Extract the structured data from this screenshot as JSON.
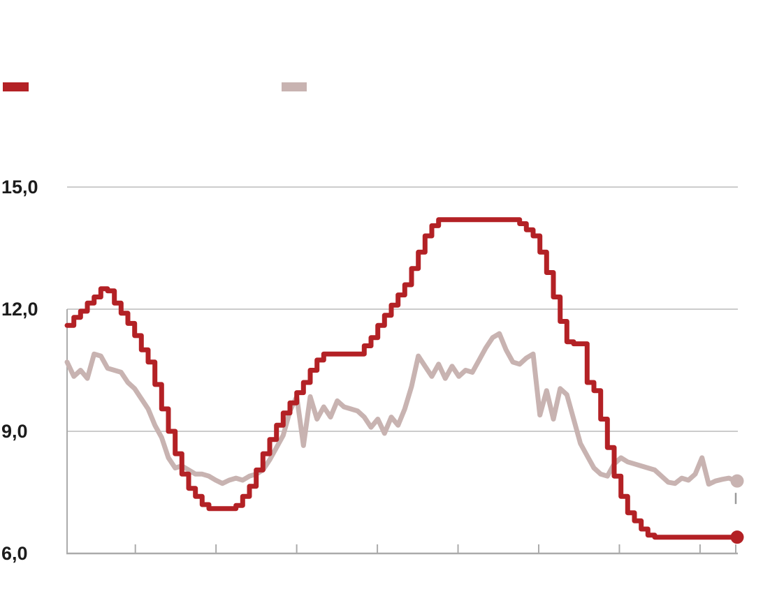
{
  "figure": {
    "background": "#ffffff",
    "title": "",
    "legend": {
      "items": [
        {
          "id": "red",
          "label": "",
          "color": "#b32125"
        },
        {
          "id": "pink",
          "label": "",
          "color": "#c8b3b1"
        }
      ]
    }
  },
  "chart_data": {
    "type": "line",
    "title": "",
    "xlabel": "",
    "ylabel": "",
    "grid": true,
    "legend_position": "top",
    "x_axis": {
      "tick_labels_visible": false,
      "tick_count": 9,
      "note_points_per_tick": 12
    },
    "y_axis": {
      "min": 6.0,
      "max": 15.5,
      "ticks": [
        {
          "label": "15,0",
          "value": 15
        },
        {
          "label": "12,0",
          "value": 12
        },
        {
          "label": "9,0",
          "value": 9
        },
        {
          "label": "6,0",
          "value": 6
        }
      ]
    },
    "colors": {
      "grid": "#cccccc",
      "axis": "#ababab",
      "tick": "#ababab",
      "label": "#1c1c1c",
      "end_dash": "#9a9a9a"
    },
    "series": [
      {
        "name": "series-red",
        "label": "",
        "color": "#b32125",
        "style": "step",
        "line_width": 7,
        "end_marker": true,
        "values": [
          11.6,
          11.8,
          11.95,
          12.15,
          12.3,
          12.5,
          12.45,
          12.15,
          11.9,
          11.65,
          11.35,
          11.0,
          10.7,
          10.15,
          9.55,
          9.0,
          8.45,
          7.95,
          7.6,
          7.4,
          7.2,
          7.1,
          7.1,
          7.1,
          7.1,
          7.18,
          7.4,
          7.65,
          8.05,
          8.45,
          8.8,
          9.15,
          9.45,
          9.7,
          9.95,
          10.2,
          10.5,
          10.75,
          10.9,
          10.9,
          10.9,
          10.9,
          10.9,
          10.9,
          11.1,
          11.3,
          11.6,
          11.85,
          12.1,
          12.35,
          12.6,
          13.0,
          13.4,
          13.8,
          14.05,
          14.2,
          14.2,
          14.2,
          14.2,
          14.2,
          14.2,
          14.2,
          14.2,
          14.2,
          14.2,
          14.2,
          14.2,
          14.1,
          13.95,
          13.8,
          13.4,
          12.9,
          12.3,
          11.7,
          11.2,
          11.15,
          11.15,
          10.2,
          10.0,
          9.3,
          8.6,
          7.9,
          7.4,
          7.0,
          6.8,
          6.6,
          6.45,
          6.4,
          6.4,
          6.4,
          6.4,
          6.4,
          6.4,
          6.4,
          6.4,
          6.4,
          6.4,
          6.4,
          6.4,
          6.4
        ]
      },
      {
        "name": "series-pink",
        "label": "",
        "color": "#c8b3b1",
        "style": "linear",
        "line_width": 7,
        "end_marker": true,
        "values": [
          10.7,
          10.35,
          10.5,
          10.3,
          10.9,
          10.85,
          10.55,
          10.5,
          10.45,
          10.2,
          10.05,
          9.8,
          9.55,
          9.15,
          8.85,
          8.35,
          8.1,
          8.15,
          8.05,
          7.95,
          7.95,
          7.9,
          7.8,
          7.72,
          7.8,
          7.85,
          7.8,
          7.9,
          7.95,
          8.05,
          8.3,
          8.6,
          8.9,
          9.5,
          9.85,
          8.65,
          9.85,
          9.3,
          9.6,
          9.35,
          9.75,
          9.6,
          9.55,
          9.5,
          9.35,
          9.1,
          9.3,
          8.95,
          9.35,
          9.15,
          9.55,
          10.1,
          10.85,
          10.6,
          10.35,
          10.65,
          10.3,
          10.6,
          10.35,
          10.5,
          10.45,
          10.75,
          11.05,
          11.3,
          11.4,
          11.0,
          10.7,
          10.65,
          10.8,
          10.9,
          9.4,
          10.0,
          9.3,
          10.05,
          9.9,
          9.3,
          8.7,
          8.4,
          8.1,
          7.95,
          7.9,
          8.2,
          8.35,
          8.25,
          8.2,
          8.15,
          8.1,
          8.05,
          7.9,
          7.75,
          7.72,
          7.85,
          7.8,
          7.95,
          8.35,
          7.7,
          7.78,
          7.82,
          7.85,
          7.78
        ]
      }
    ]
  }
}
